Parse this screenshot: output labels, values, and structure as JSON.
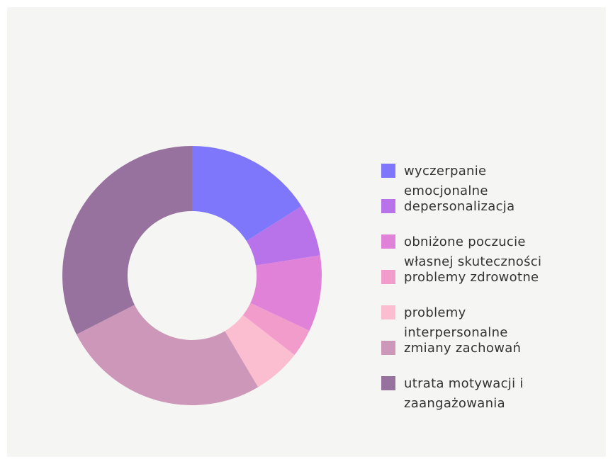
{
  "chart_data": {
    "type": "donut",
    "categories": [
      "wyczerpanie emocjonalne",
      "depersonalizacja",
      "obniżone poczucie własnej skuteczności",
      "problemy zdrowotne",
      "problemy interpersonalne",
      "zmiany zachowań",
      "utrata motywacji i zaangażowania"
    ],
    "values": [
      16,
      6.5,
      9.5,
      3.5,
      6,
      26,
      32.5
    ],
    "colors": [
      "#7f77fb",
      "#b872ea",
      "#e083d8",
      "#f29ccb",
      "#fbbdd0",
      "#cc97b8",
      "#98729e"
    ],
    "legend": "right"
  }
}
